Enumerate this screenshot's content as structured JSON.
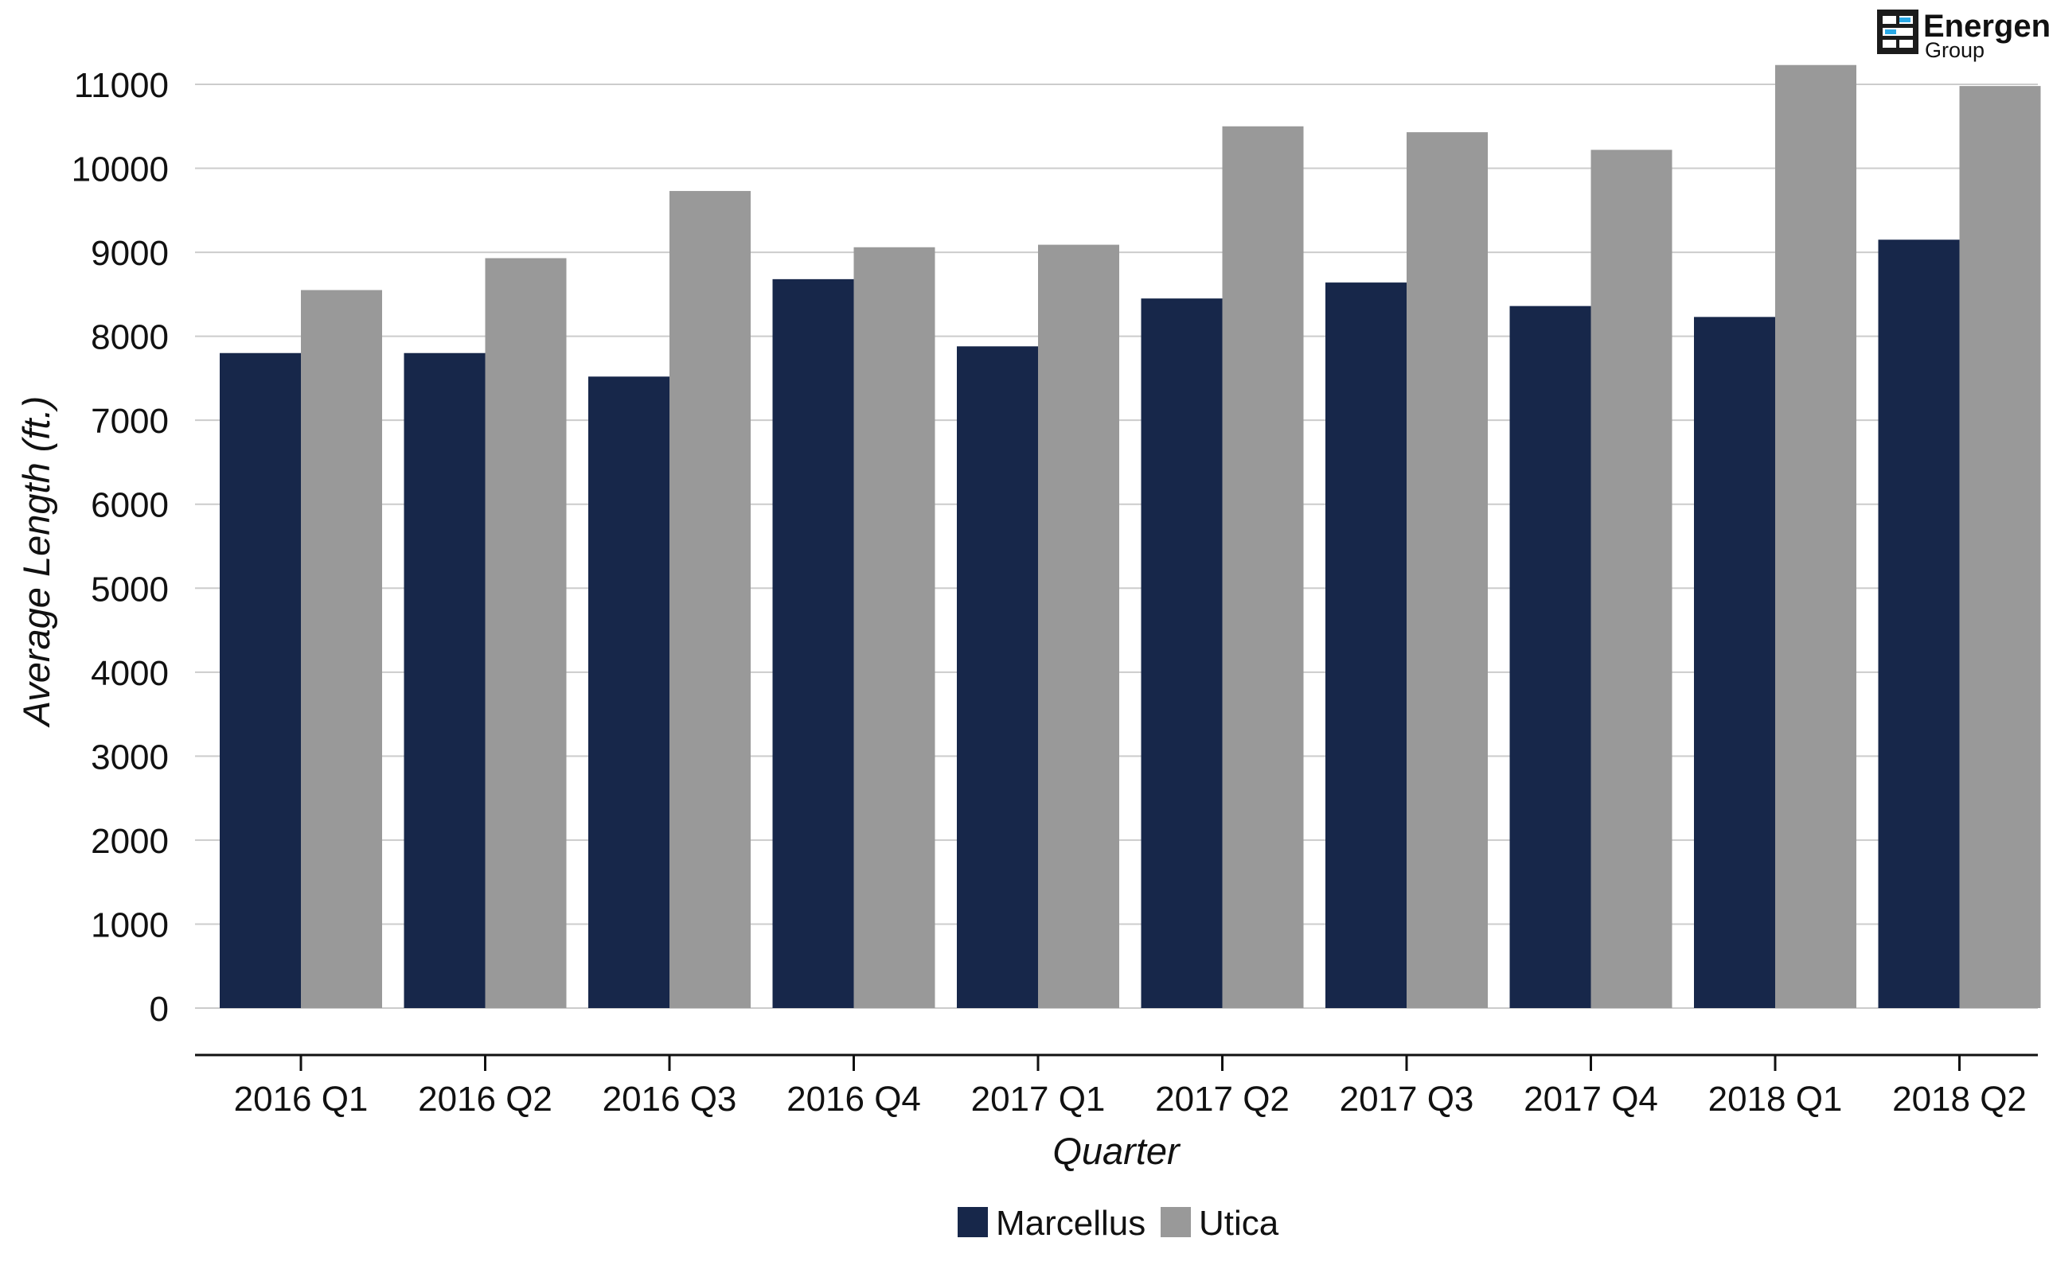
{
  "chart_data": {
    "type": "bar",
    "title": "",
    "xlabel": "Quarter",
    "ylabel": "Average Length (ft.)",
    "categories": [
      "2016 Q1",
      "2016 Q2",
      "2016 Q3",
      "2016 Q4",
      "2017 Q1",
      "2017 Q2",
      "2017 Q3",
      "2017 Q4",
      "2018 Q1",
      "2018 Q2"
    ],
    "series": [
      {
        "name": "Marcellus",
        "color": "#17274a",
        "values": [
          7800,
          7800,
          7520,
          8680,
          7880,
          8450,
          8640,
          8360,
          8230,
          9150
        ]
      },
      {
        "name": "Utica",
        "color": "#999999",
        "values": [
          8550,
          8930,
          9730,
          9060,
          9090,
          10500,
          10430,
          10220,
          11230,
          10980
        ]
      }
    ],
    "ylim": [
      0,
      11000
    ],
    "yticks": [
      0,
      1000,
      2000,
      3000,
      4000,
      5000,
      6000,
      7000,
      8000,
      9000,
      10000,
      11000
    ],
    "grid": true,
    "legend_position": "bottom-center"
  },
  "logo": {
    "name": "Energent",
    "subtitle": "Group",
    "icon": "energent-logo-icon",
    "colors": {
      "dark": "#1b1b1b",
      "accent": "#2aa9e6"
    }
  }
}
